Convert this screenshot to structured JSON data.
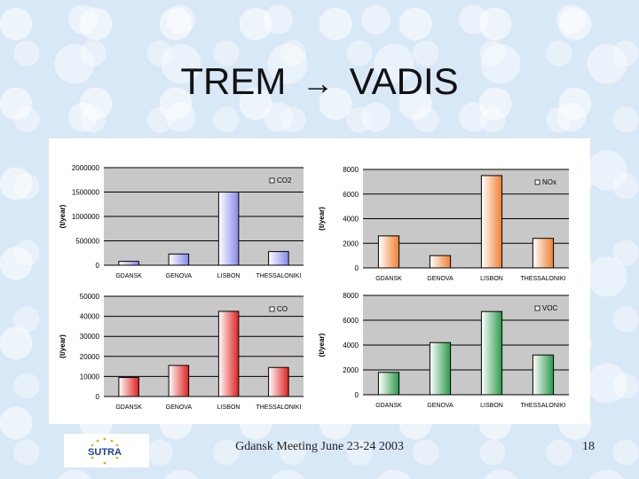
{
  "slide": {
    "title_left": "TREM",
    "title_arrow": "→",
    "title_right": "VADIS",
    "footer": "Gdansk Meeting June 23-24 2003",
    "page_number": "18",
    "logo_text": "SUTRA"
  },
  "colors": {
    "co2": "#8888ee",
    "nox": "#f08030",
    "co": "#e02020",
    "voc": "#2a9a4a"
  },
  "chart_data": [
    {
      "type": "bar",
      "categories": [
        "GDANSK",
        "GENOVA",
        "LISBON",
        "THESSALONIKI"
      ],
      "series": [
        {
          "name": "CO2",
          "values": [
            80000,
            230000,
            1500000,
            280000
          ]
        }
      ],
      "ylabel": "(t/year)",
      "ylim": [
        0,
        2000000
      ],
      "yticks": [
        "2000000",
        "1500000",
        "1000000",
        "500000",
        "0"
      ],
      "grid": true,
      "legend": "top-right"
    },
    {
      "type": "bar",
      "categories": [
        "GDANSK",
        "GENOVA",
        "LISBON",
        "THESSALONIKI"
      ],
      "series": [
        {
          "name": "NOx",
          "values": [
            2600,
            1000,
            7500,
            2400
          ]
        }
      ],
      "ylabel": "(t/year)",
      "ylim": [
        0,
        8000
      ],
      "yticks": [
        "8000",
        "6000",
        "4000",
        "2000",
        "0"
      ],
      "grid": true,
      "legend": "top-right"
    },
    {
      "type": "bar",
      "categories": [
        "GDANSK",
        "GENOVA",
        "LISBON",
        "THESSALONIKI"
      ],
      "series": [
        {
          "name": "CO",
          "values": [
            9500,
            15500,
            42500,
            14500
          ]
        }
      ],
      "ylabel": "(t/year)",
      "ylim": [
        0,
        50000
      ],
      "yticks": [
        "50000",
        "40000",
        "30000",
        "20000",
        "10000",
        "0"
      ],
      "grid": true,
      "legend": "top-right"
    },
    {
      "type": "bar",
      "categories": [
        "GDANSK",
        "GENOVA",
        "LISBON",
        "THESSALONIKI"
      ],
      "series": [
        {
          "name": "VOC",
          "values": [
            1800,
            4200,
            6700,
            3200
          ]
        }
      ],
      "ylabel": "(t/year)",
      "ylim": [
        0,
        8000
      ],
      "yticks": [
        "8000",
        "6000",
        "4000",
        "2000",
        "0"
      ],
      "grid": true,
      "legend": "top-right"
    }
  ]
}
